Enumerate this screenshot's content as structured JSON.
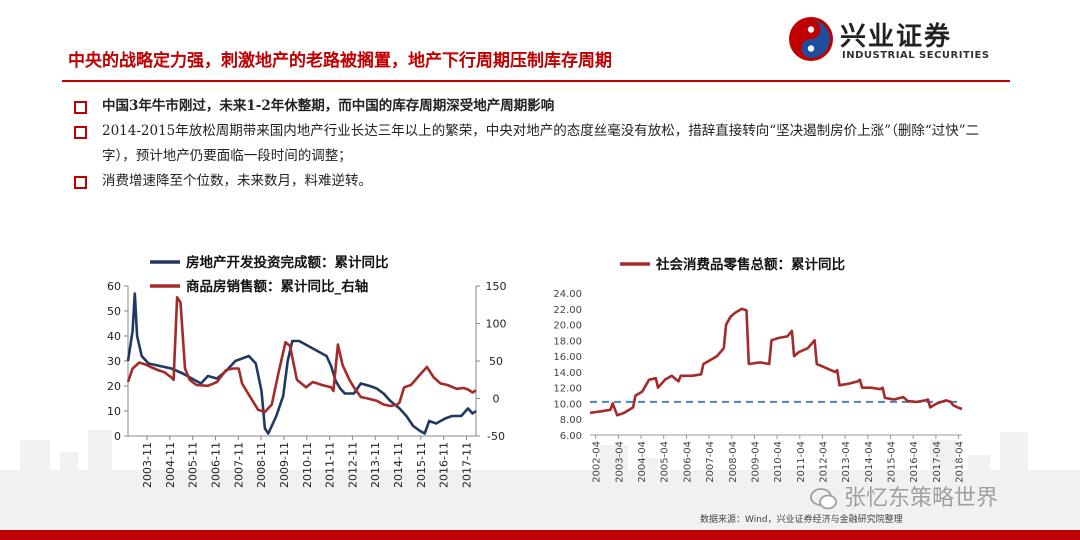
{
  "header": {
    "title": "中央的战略定力强，刺激地产的老路被搁置，地产下行周期压制库存周期",
    "logo_cn": "兴业证券",
    "logo_en": "INDUSTRIAL SECURITIES"
  },
  "bullets": [
    "中国3年牛市刚过，未来1-2年休整期，而中国的库存周期深受地产周期影响",
    "2014-2015年放松周期带来国内地产行业长达三年以上的繁荣，中央对地产的态度丝毫没有放松，措辞直接转向“坚决遏制房价上涨”（删除“过快”二字），预计地产仍要面临一段时间的调整；",
    "消费增速降至个位数，未来数月，料难逆转。"
  ],
  "footer": {
    "source": "数据来源：Wind，兴业证券经济与金融研究院整理",
    "watermark": "张忆东策略世界"
  },
  "colors": {
    "navy": "#1f3864",
    "maroon": "#a52a2a",
    "accent": "#c00000",
    "dashed": "#4f81bd"
  },
  "chart_data": [
    {
      "type": "line",
      "title": "",
      "xlabel": "",
      "ylabel": "",
      "x_ticks": [
        "2003-11",
        "2004-11",
        "2005-11",
        "2006-11",
        "2007-11",
        "2008-11",
        "2009-11",
        "2010-11",
        "2011-11",
        "2012-11",
        "2013-11",
        "2014-11",
        "2015-11",
        "2016-11",
        "2017-11"
      ],
      "x_range": [
        2003.0,
        2018.25
      ],
      "ylim": [
        0,
        60
      ],
      "y_ticks": [
        0,
        10,
        20,
        30,
        40,
        50,
        60
      ],
      "y2lim": [
        -50,
        150
      ],
      "y2_ticks": [
        -50,
        0,
        50,
        100,
        150
      ],
      "legend_position": "top",
      "grid": false,
      "series": [
        {
          "name": "房地产开发投资完成额：累计同比",
          "axis": "left",
          "color": "#1f3864",
          "points": [
            [
              2003.0,
              30
            ],
            [
              2003.2,
              42
            ],
            [
              2003.3,
              57
            ],
            [
              2003.4,
              40
            ],
            [
              2003.6,
              32
            ],
            [
              2003.9,
              29
            ],
            [
              2004.4,
              28
            ],
            [
              2004.9,
              27
            ],
            [
              2005.4,
              25
            ],
            [
              2005.8,
              23
            ],
            [
              2006.2,
              21
            ],
            [
              2006.5,
              24
            ],
            [
              2006.9,
              23
            ],
            [
              2007.3,
              26
            ],
            [
              2007.7,
              30
            ],
            [
              2008.0,
              31
            ],
            [
              2008.3,
              32
            ],
            [
              2008.6,
              29
            ],
            [
              2008.85,
              18
            ],
            [
              2009.0,
              3
            ],
            [
              2009.15,
              1
            ],
            [
              2009.5,
              8
            ],
            [
              2009.8,
              16
            ],
            [
              2010.0,
              30
            ],
            [
              2010.2,
              38
            ],
            [
              2010.5,
              38
            ],
            [
              2010.9,
              36
            ],
            [
              2011.3,
              34
            ],
            [
              2011.7,
              32
            ],
            [
              2011.9,
              28
            ],
            [
              2012.0,
              25
            ],
            [
              2012.1,
              22
            ],
            [
              2012.3,
              19
            ],
            [
              2012.5,
              17
            ],
            [
              2012.9,
              17
            ],
            [
              2013.2,
              21
            ],
            [
              2013.6,
              20
            ],
            [
              2013.9,
              19
            ],
            [
              2014.2,
              17
            ],
            [
              2014.5,
              14
            ],
            [
              2014.9,
              11
            ],
            [
              2015.2,
              8
            ],
            [
              2015.5,
              4
            ],
            [
              2015.8,
              2
            ],
            [
              2016.0,
              1
            ],
            [
              2016.2,
              6
            ],
            [
              2016.5,
              5
            ],
            [
              2016.9,
              7
            ],
            [
              2017.2,
              8
            ],
            [
              2017.6,
              8
            ],
            [
              2017.9,
              11
            ],
            [
              2018.1,
              9
            ],
            [
              2018.25,
              10
            ]
          ]
        },
        {
          "name": "商品房销售额：累计同比_右轴",
          "axis": "right",
          "color": "#a52a2a",
          "points": [
            [
              2003.0,
              22
            ],
            [
              2003.2,
              40
            ],
            [
              2003.5,
              48
            ],
            [
              2003.8,
              45
            ],
            [
              2004.0,
              42
            ],
            [
              2004.3,
              38
            ],
            [
              2004.6,
              35
            ],
            [
              2004.9,
              28
            ],
            [
              2005.0,
              25
            ],
            [
              2005.15,
              135
            ],
            [
              2005.3,
              128
            ],
            [
              2005.5,
              40
            ],
            [
              2005.7,
              25
            ],
            [
              2006.0,
              18
            ],
            [
              2006.5,
              17
            ],
            [
              2006.9,
              22
            ],
            [
              2007.1,
              30
            ],
            [
              2007.3,
              38
            ],
            [
              2007.6,
              40
            ],
            [
              2007.85,
              40
            ],
            [
              2008.0,
              20
            ],
            [
              2008.3,
              5
            ],
            [
              2008.7,
              -15
            ],
            [
              2009.0,
              -18
            ],
            [
              2009.3,
              -8
            ],
            [
              2009.6,
              35
            ],
            [
              2009.9,
              75
            ],
            [
              2010.1,
              70
            ],
            [
              2010.4,
              25
            ],
            [
              2010.8,
              15
            ],
            [
              2011.1,
              22
            ],
            [
              2011.5,
              18
            ],
            [
              2011.9,
              15
            ],
            [
              2012.0,
              10
            ],
            [
              2012.2,
              72
            ],
            [
              2012.4,
              45
            ],
            [
              2012.7,
              25
            ],
            [
              2012.9,
              15
            ],
            [
              2013.2,
              2
            ],
            [
              2013.5,
              0
            ],
            [
              2013.9,
              -3
            ],
            [
              2014.2,
              -8
            ],
            [
              2014.5,
              -10
            ],
            [
              2014.8,
              -8
            ],
            [
              2014.9,
              -5
            ],
            [
              2015.1,
              15
            ],
            [
              2015.4,
              18
            ],
            [
              2015.8,
              32
            ],
            [
              2016.1,
              42
            ],
            [
              2016.4,
              28
            ],
            [
              2016.7,
              20
            ],
            [
              2017.0,
              18
            ],
            [
              2017.4,
              13
            ],
            [
              2017.7,
              14
            ],
            [
              2017.9,
              12
            ],
            [
              2018.1,
              8
            ],
            [
              2018.25,
              11
            ]
          ]
        }
      ]
    },
    {
      "type": "line",
      "title": "",
      "xlabel": "",
      "ylabel": "",
      "x_ticks": [
        "2002-04",
        "2003-04",
        "2004-04",
        "2005-04",
        "2006-04",
        "2007-04",
        "2008-04",
        "2009-04",
        "2010-04",
        "2011-04",
        "2012-04",
        "2013-04",
        "2014-04",
        "2015-04",
        "2016-04",
        "2017-04",
        "2018-04"
      ],
      "x_range": [
        2002.0,
        2018.4
      ],
      "ylim": [
        6,
        24
      ],
      "y_ticks": [
        "6.00",
        "8.00",
        "10.00",
        "12.00",
        "14.00",
        "16.00",
        "18.00",
        "20.00",
        "22.00",
        "24.00"
      ],
      "reference_line": 10.2,
      "legend_position": "top",
      "grid": false,
      "series": [
        {
          "name": "社会消费品零售总额：累计同比",
          "color": "#a52a2a",
          "points": [
            [
              2002.0,
              8.8
            ],
            [
              2002.5,
              9.0
            ],
            [
              2002.9,
              9.2
            ],
            [
              2003.0,
              10.0
            ],
            [
              2003.2,
              8.5
            ],
            [
              2003.5,
              8.8
            ],
            [
              2003.9,
              9.5
            ],
            [
              2004.0,
              11.0
            ],
            [
              2004.3,
              11.5
            ],
            [
              2004.6,
              13.0
            ],
            [
              2004.9,
              13.2
            ],
            [
              2005.0,
              12.0
            ],
            [
              2005.3,
              13.0
            ],
            [
              2005.6,
              13.5
            ],
            [
              2005.9,
              12.8
            ],
            [
              2006.0,
              13.5
            ],
            [
              2006.5,
              13.5
            ],
            [
              2006.9,
              13.7
            ],
            [
              2007.0,
              15.0
            ],
            [
              2007.3,
              15.5
            ],
            [
              2007.6,
              16.0
            ],
            [
              2007.9,
              17.0
            ],
            [
              2008.0,
              20.0
            ],
            [
              2008.2,
              21.0
            ],
            [
              2008.4,
              21.5
            ],
            [
              2008.7,
              22.0
            ],
            [
              2008.9,
              21.8
            ],
            [
              2009.0,
              15.0
            ],
            [
              2009.5,
              15.2
            ],
            [
              2009.9,
              15.0
            ],
            [
              2010.0,
              18.0
            ],
            [
              2010.3,
              18.3
            ],
            [
              2010.7,
              18.5
            ],
            [
              2010.9,
              19.2
            ],
            [
              2011.0,
              16.0
            ],
            [
              2011.2,
              16.5
            ],
            [
              2011.6,
              17.0
            ],
            [
              2011.9,
              18.0
            ],
            [
              2012.0,
              15.0
            ],
            [
              2012.4,
              14.5
            ],
            [
              2012.8,
              14.0
            ],
            [
              2012.9,
              14.2
            ],
            [
              2013.0,
              12.3
            ],
            [
              2013.4,
              12.5
            ],
            [
              2013.8,
              12.8
            ],
            [
              2013.9,
              13.0
            ],
            [
              2014.0,
              12.0
            ],
            [
              2014.4,
              12.0
            ],
            [
              2014.8,
              11.8
            ],
            [
              2014.9,
              12.0
            ],
            [
              2015.0,
              10.7
            ],
            [
              2015.4,
              10.5
            ],
            [
              2015.8,
              10.8
            ],
            [
              2015.9,
              10.6
            ],
            [
              2016.0,
              10.3
            ],
            [
              2016.4,
              10.2
            ],
            [
              2016.8,
              10.4
            ],
            [
              2016.9,
              10.5
            ],
            [
              2017.0,
              9.5
            ],
            [
              2017.3,
              10.0
            ],
            [
              2017.7,
              10.4
            ],
            [
              2017.9,
              10.2
            ],
            [
              2018.0,
              9.8
            ],
            [
              2018.2,
              9.5
            ],
            [
              2018.4,
              9.3
            ]
          ]
        }
      ]
    }
  ]
}
